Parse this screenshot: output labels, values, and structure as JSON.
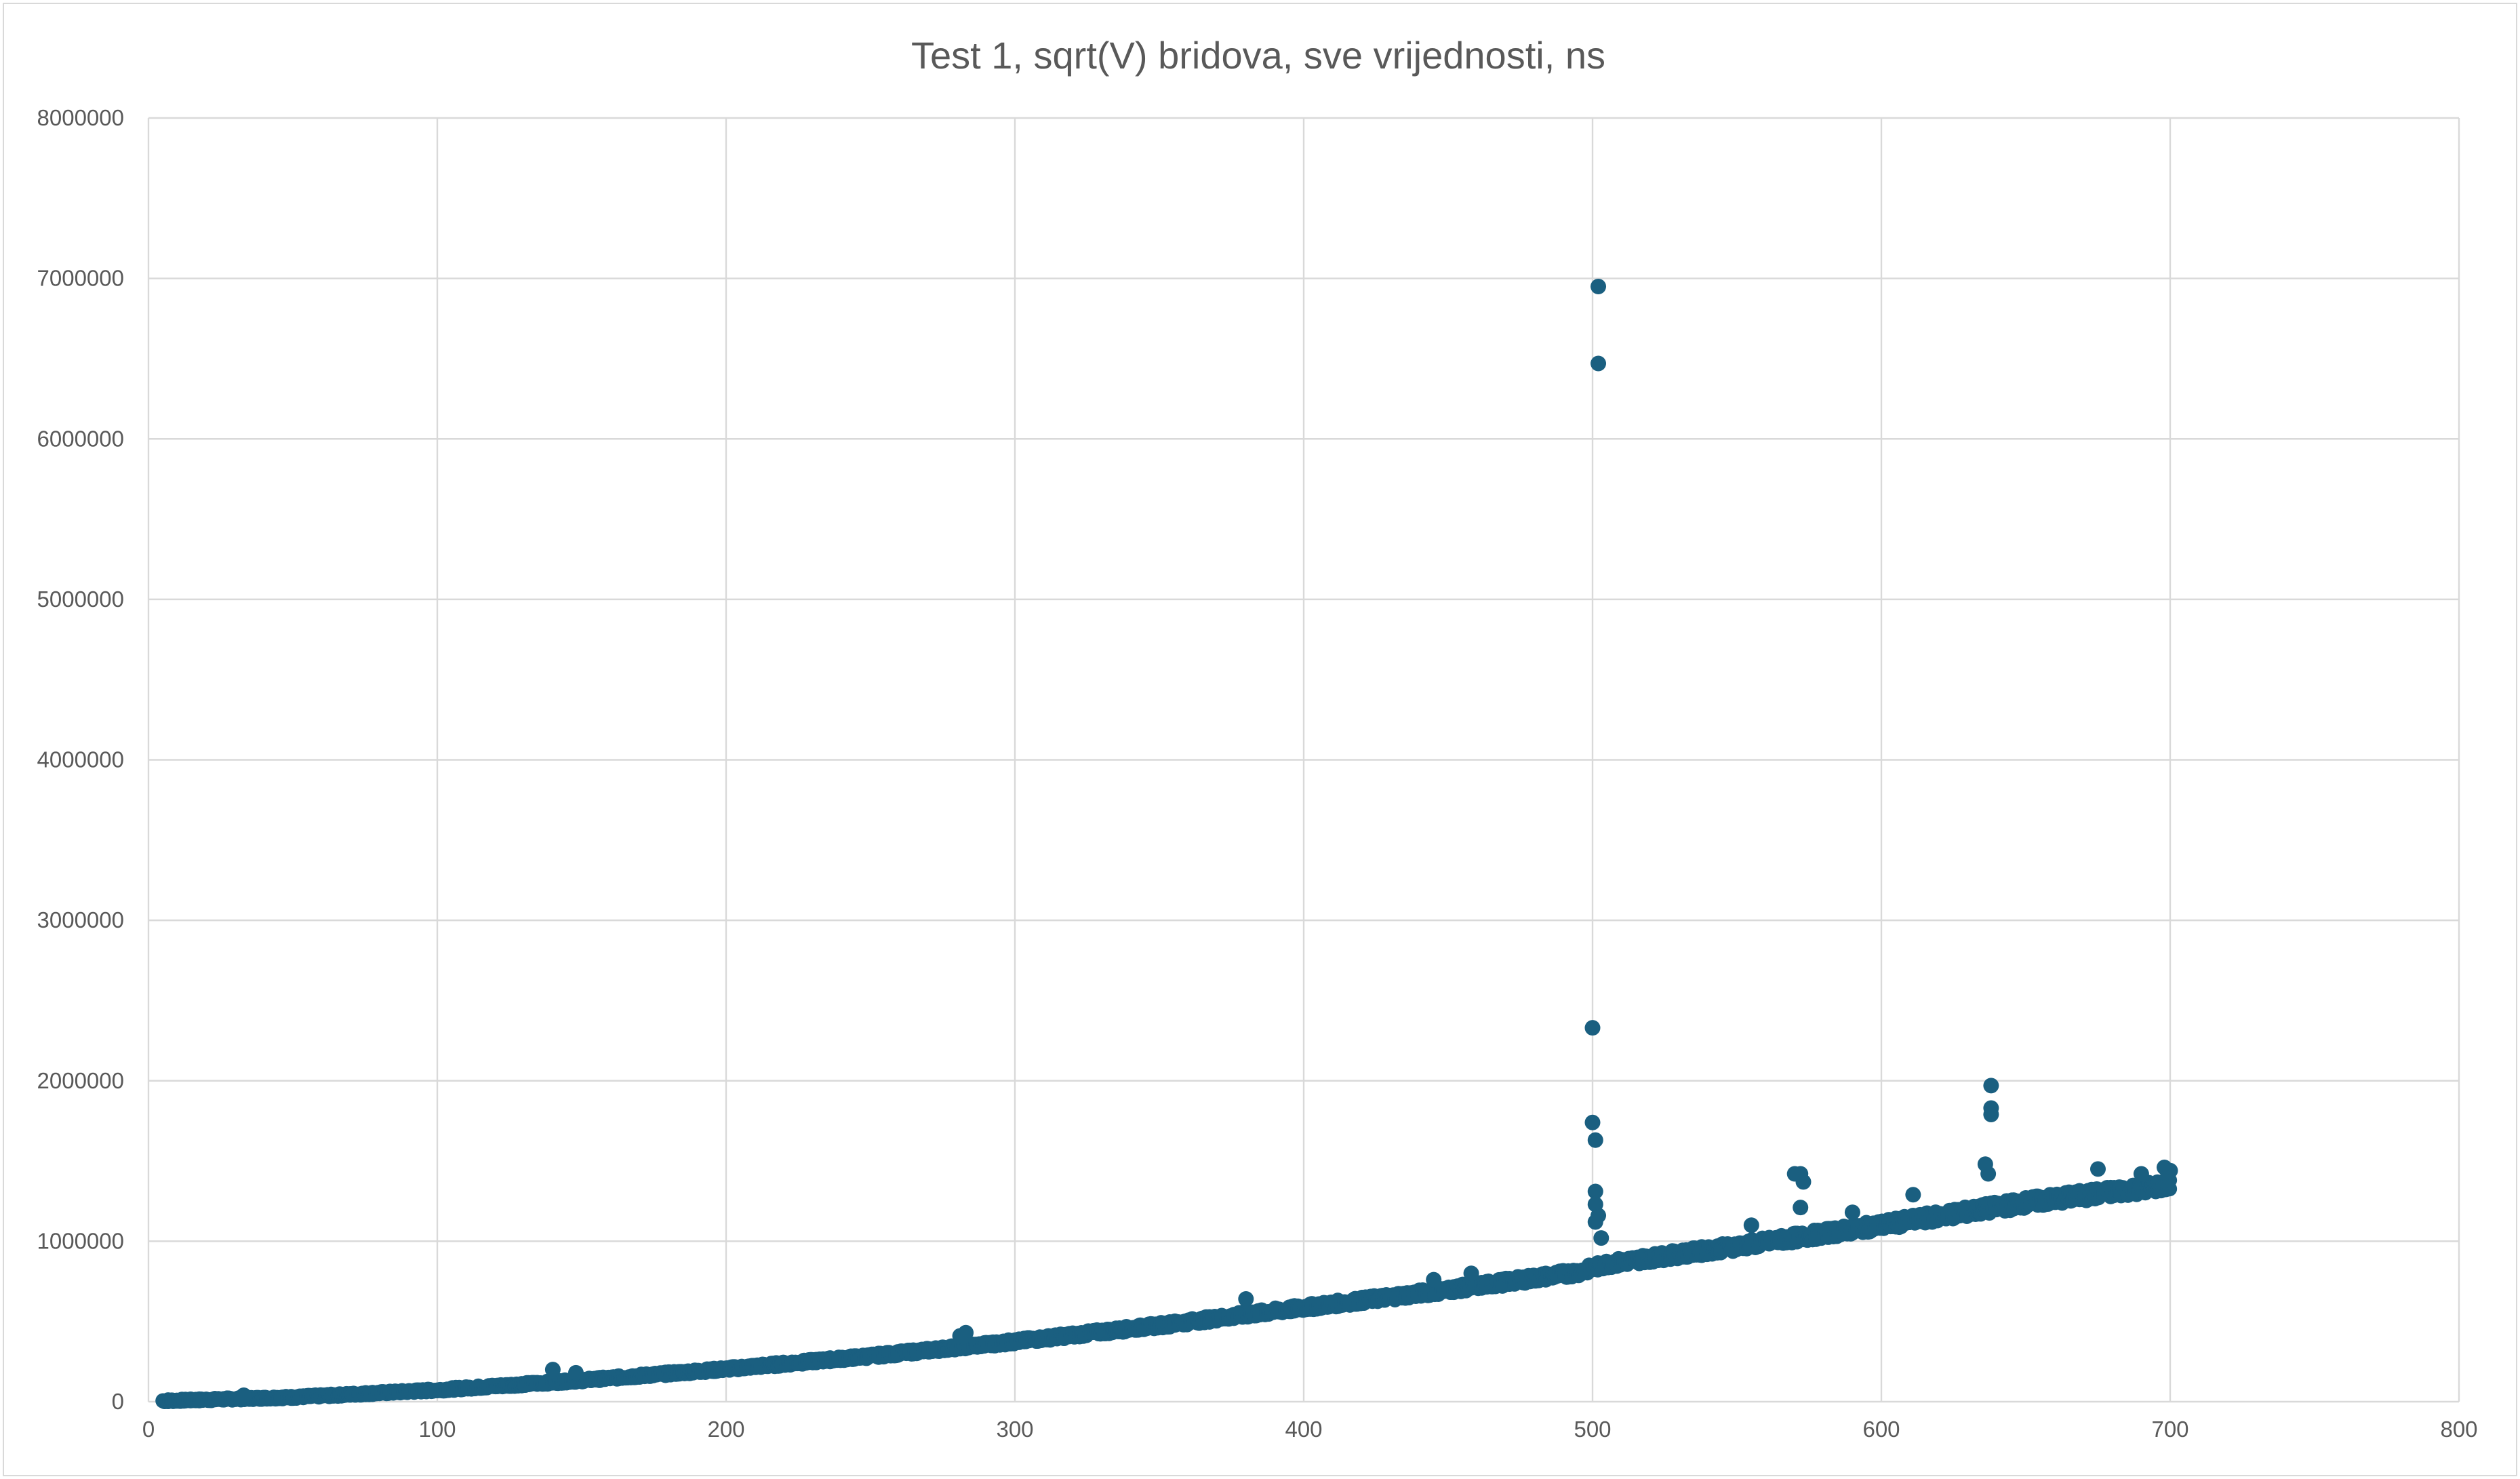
{
  "chart_data": {
    "type": "scatter",
    "title": "Test 1, sqrt(V) bridova, sve vrijednosti, ns",
    "xlabel": "",
    "ylabel": "",
    "xlim": [
      0,
      800
    ],
    "ylim": [
      0,
      8000000
    ],
    "x_ticks": [
      "0",
      "100",
      "200",
      "300",
      "400",
      "500",
      "600",
      "700",
      "800"
    ],
    "y_ticks": [
      "0",
      "1000000",
      "2000000",
      "3000000",
      "4000000",
      "5000000",
      "6000000",
      "7000000",
      "8000000"
    ],
    "grid": true,
    "legend": "none",
    "marker_color": "#1a5f80",
    "grid_color": "#d9d9d9",
    "text_color": "#595959",
    "series": [
      {
        "trend_x": [
          5,
          50,
          100,
          150,
          200,
          250,
          300,
          350,
          400,
          450,
          495,
          505,
          550,
          600,
          650,
          700
        ],
        "trend_y": [
          3000,
          25000,
          70000,
          130000,
          200000,
          280000,
          370000,
          470000,
          580000,
          690000,
          800000,
          850000,
          960000,
          1090000,
          1230000,
          1340000
        ],
        "points": [
          [
            502,
            6950000
          ],
          [
            502,
            6470000
          ],
          [
            500,
            2330000
          ],
          [
            500,
            1740000
          ],
          [
            501,
            1630000
          ],
          [
            501,
            1310000
          ],
          [
            501,
            1230000
          ],
          [
            502,
            1160000
          ],
          [
            501,
            1120000
          ],
          [
            503,
            1020000
          ],
          [
            638,
            1970000
          ],
          [
            638,
            1830000
          ],
          [
            638,
            1790000
          ],
          [
            636,
            1480000
          ],
          [
            637,
            1420000
          ],
          [
            570,
            1420000
          ],
          [
            572,
            1420000
          ],
          [
            573,
            1370000
          ],
          [
            572,
            1210000
          ],
          [
            698,
            1460000
          ],
          [
            700,
            1440000
          ],
          [
            675,
            1450000
          ],
          [
            690,
            1420000
          ],
          [
            380,
            640000
          ],
          [
            283,
            430000
          ],
          [
            281,
            410000
          ],
          [
            140,
            200000
          ],
          [
            148,
            180000
          ],
          [
            33,
            40000
          ],
          [
            445,
            760000
          ],
          [
            458,
            800000
          ],
          [
            611,
            1290000
          ],
          [
            555,
            1100000
          ],
          [
            590,
            1180000
          ]
        ]
      }
    ]
  }
}
